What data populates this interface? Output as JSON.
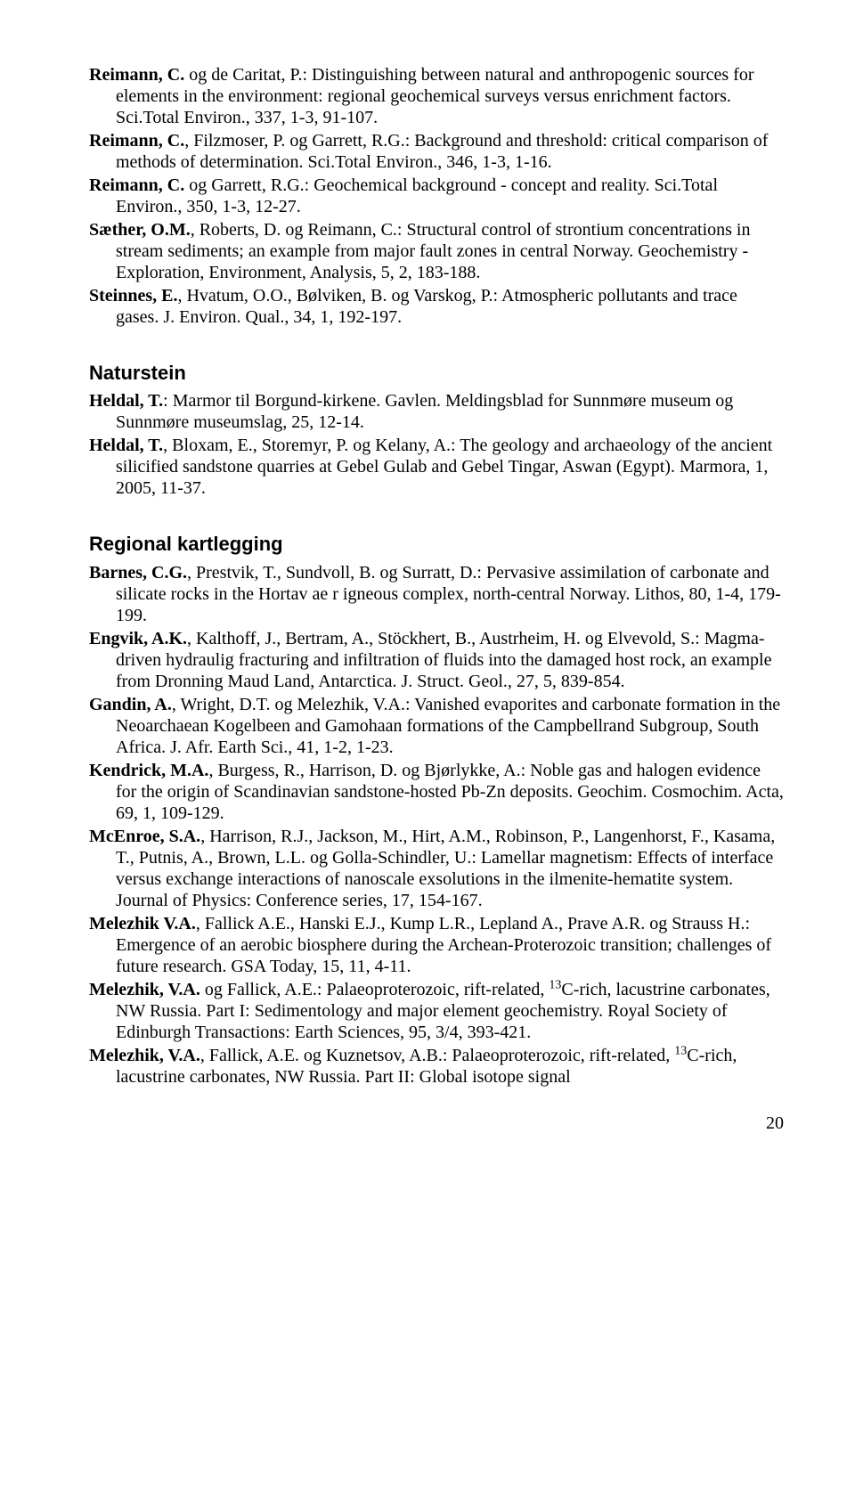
{
  "sections": {
    "top": [
      {
        "bold": "Reimann, C.",
        "rest": " og de Caritat, P.: Distinguishing between natural and anthropogenic sources for elements in the environment: regional geochemical surveys versus enrichment factors. Sci.Total Environ., 337, 1-3, 91-107."
      },
      {
        "bold": "Reimann, C.",
        "rest": ", Filzmoser, P. og Garrett, R.G.: Background and threshold: critical comparison of methods of determination. Sci.Total Environ., 346, 1-3, 1-16."
      },
      {
        "bold": "Reimann, C.",
        "rest": " og Garrett, R.G.: Geochemical background - concept and reality. Sci.Total Environ., 350, 1-3, 12-27."
      },
      {
        "bold": "Sæther, O.M.",
        "rest": ", Roberts, D. og Reimann, C.: Structural control of strontium concentrations in stream sediments; an example from major fault zones in central Norway. Geochemistry - Exploration, Environment, Analysis, 5, 2, 183-188."
      },
      {
        "bold": "Steinnes, E.",
        "rest": ", Hvatum, O.O., Bølviken, B. og Varskog, P.: Atmospheric pollutants and trace gases. J. Environ. Qual., 34, 1, 192-197."
      }
    ],
    "naturstein_title": "Naturstein",
    "naturstein": [
      {
        "bold": "Heldal, T.",
        "rest": ": Marmor til Borgund-kirkene. Gavlen. Meldingsblad for Sunnmøre museum og Sunnmøre museumslag, 25, 12-14."
      },
      {
        "bold": "Heldal, T.",
        "rest": ", Bloxam, E., Storemyr, P. og Kelany, A.: The geology and archaeology of the ancient silicified sandstone quarries at Gebel Gulab and Gebel Tingar, Aswan (Egypt). Marmora, 1, 2005, 11-37."
      }
    ],
    "regional_title": "Regional kartlegging",
    "regional": [
      {
        "bold": "Barnes, C.G.",
        "rest": ", Prestvik, T., Sundvoll, B. og Surratt, D.: Pervasive assimilation of carbonate and silicate rocks in the Hortav ae r igneous complex, north-central Norway. Lithos, 80, 1-4, 179-199."
      },
      {
        "bold": "Engvik, A.K.",
        "rest": ", Kalthoff, J., Bertram, A., Stöckhert, B., Austrheim, H. og Elvevold, S.: Magma-driven hydraulig fracturing and infiltration of fluids into the damaged host rock, an example from Dronning Maud Land, Antarctica. J. Struct. Geol., 27, 5, 839-854."
      },
      {
        "bold": "Gandin, A.",
        "rest": ", Wright, D.T. og Melezhik, V.A.: Vanished evaporites and carbonate formation in the Neoarchaean Kogelbeen and Gamohaan formations of the Campbellrand Subgroup, South Africa. J. Afr. Earth Sci., 41, 1-2, 1-23."
      },
      {
        "bold": "Kendrick, M.A.",
        "rest": ", Burgess, R., Harrison, D. og Bjørlykke, A.: Noble gas and halogen evidence for the origin of Scandinavian sandstone-hosted Pb-Zn deposits. Geochim. Cosmochim. Acta, 69, 1, 109-129."
      },
      {
        "bold": "McEnroe, S.A.",
        "rest": ", Harrison, R.J., Jackson, M., Hirt, A.M., Robinson, P., Langenhorst, F., Kasama, T., Putnis, A., Brown, L.L. og Golla-Schindler, U.: Lamellar magnetism: Effects of interface versus exchange interactions of nanoscale exsolutions in the ilmenite-hematite system. Journal of Physics: Conference series, 17, 154-167."
      },
      {
        "bold": "Melezhik V.A.",
        "rest": ", Fallick A.E., Hanski E.J., Kump L.R., Lepland A., Prave A.R. og Strauss H.: Emergence of an aerobic biosphere during the Archean-Proterozoic transition; challenges of future research. GSA Today, 15, 11, 4-11."
      },
      {
        "bold": "Melezhik, V.A.",
        "rest": " og Fallick, A.E.: Palaeoproterozoic, rift-related, ",
        "sup": "13",
        "rest2": "C-rich, lacustrine carbonates, NW Russia. Part I: Sedimentology and major element geochemistry. Royal Society of Edinburgh Transactions: Earth Sciences, 95, 3/4, 393-421."
      },
      {
        "bold": "Melezhik, V.A.",
        "rest": ", Fallick, A.E. og Kuznetsov, A.B.: Palaeoproterozoic, rift-related, ",
        "sup": "13",
        "rest2": "C-rich, lacustrine carbonates, NW Russia. Part II: Global isotope signal"
      }
    ]
  },
  "page_number": "20"
}
